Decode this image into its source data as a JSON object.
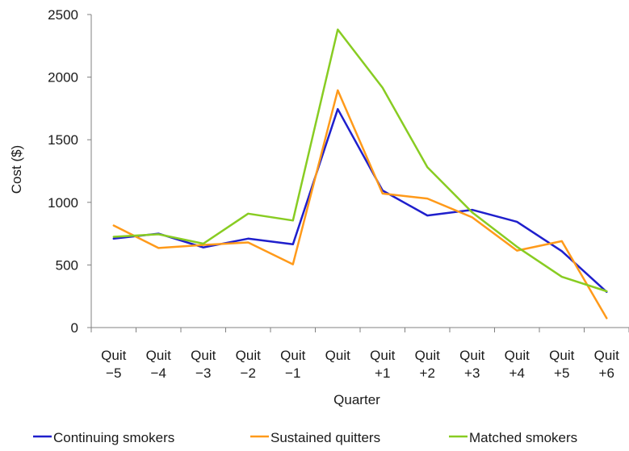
{
  "chart_data": {
    "type": "line",
    "categories": [
      [
        "Quit",
        "−5"
      ],
      [
        "Quit",
        "−4"
      ],
      [
        "Quit",
        "−3"
      ],
      [
        "Quit",
        "−2"
      ],
      [
        "Quit",
        "−1"
      ],
      [
        "Quit"
      ],
      [
        "Quit",
        "+1"
      ],
      [
        "Quit",
        "+2"
      ],
      [
        "Quit",
        "+3"
      ],
      [
        "Quit",
        "+4"
      ],
      [
        "Quit",
        "+5"
      ],
      [
        "Quit",
        "+6"
      ]
    ],
    "series": [
      {
        "name": "Continuing smokers",
        "color": "#1f1fcc",
        "values": [
          710,
          750,
          640,
          710,
          665,
          1745,
          1095,
          895,
          940,
          845,
          610,
          285
        ]
      },
      {
        "name": "Sustained quitters",
        "color": "#ff9a1a",
        "values": [
          815,
          635,
          660,
          680,
          505,
          1895,
          1070,
          1030,
          880,
          615,
          690,
          75
        ]
      },
      {
        "name": "Matched smokers",
        "color": "#88cc22",
        "values": [
          725,
          745,
          670,
          910,
          855,
          2380,
          1915,
          1280,
          920,
          645,
          405,
          290
        ]
      }
    ],
    "xlabel": "Quarter",
    "ylabel": "Cost ($)",
    "ylim": [
      0,
      2500
    ],
    "yticks": [
      0,
      500,
      1000,
      1500,
      2000,
      2500
    ],
    "grid": false,
    "legend_position": "bottom"
  }
}
